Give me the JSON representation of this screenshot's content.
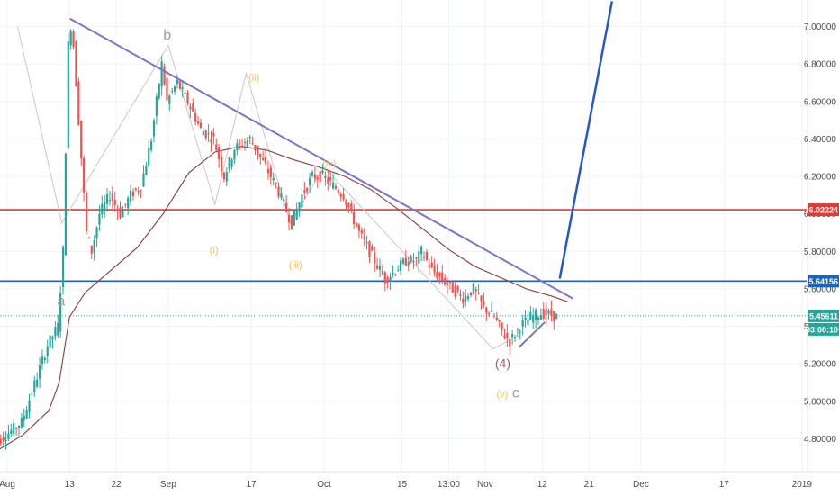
{
  "chart_data": {
    "type": "candlestick",
    "y_axis": {
      "ylim": [
        4.6,
        7.1
      ],
      "ticks": [
        "4.80000",
        "5.00000",
        "5.20000",
        "5.40000",
        "5.60000",
        "5.80000",
        "6.00000",
        "6.20000",
        "6.40000",
        "6.60000",
        "6.80000",
        "7.00000"
      ],
      "tick_values": [
        4.8,
        5.0,
        5.2,
        5.4,
        5.6,
        5.8,
        6.0,
        6.2,
        6.4,
        6.6,
        6.8,
        7.0
      ]
    },
    "x_axis": {
      "day_range": [
        -3,
        158
      ],
      "tick_labels": [
        "Aug",
        "13",
        "22",
        "Sep",
        "17",
        "Oct",
        "15",
        "13:00",
        "Nov",
        "12",
        "21",
        "Dec",
        "17",
        "2019"
      ],
      "tick_days": [
        0,
        12,
        21,
        31,
        47,
        61,
        76,
        85,
        92,
        103,
        112,
        122,
        138,
        153
      ]
    },
    "price_levels": [
      {
        "value": 6.02224,
        "label": "6.02224",
        "color": "#e53935"
      },
      {
        "value": 5.64156,
        "label": "5.64156",
        "color": "#1e63b8"
      },
      {
        "value": 5.45611,
        "label": "5.45611",
        "color": "#26a69a"
      }
    ],
    "countdown_label": "03:00:10",
    "wave_labels": [
      {
        "text": "a",
        "day": 10.4,
        "price": 5.51,
        "color": "#9e9e9e",
        "size": 16
      },
      {
        "text": "b",
        "day": 30.8,
        "price": 6.93,
        "color": "#9e9e9e",
        "size": 16
      },
      {
        "text": "(ii)",
        "day": 47.5,
        "price": 6.71,
        "color": "#f0c35a",
        "size": 11
      },
      {
        "text": "(i)",
        "day": 39.8,
        "price": 5.79,
        "color": "#f0c35a",
        "size": 11
      },
      {
        "text": "(iii)",
        "day": 55.5,
        "price": 5.71,
        "color": "#f0c35a",
        "size": 11
      },
      {
        "text": "(iv)",
        "day": 62.0,
        "price": 6.25,
        "color": "#f0c35a",
        "size": 11
      },
      {
        "text": "(4)",
        "day": 95.4,
        "price": 5.18,
        "color": "#9c5b74",
        "size": 14
      },
      {
        "text": "(v)",
        "day": 95.3,
        "price": 5.02,
        "color": "#f0c35a",
        "size": 11
      },
      {
        "text": "c",
        "day": 97.9,
        "price": 5.02,
        "color": "#9e9e9e",
        "size": 16
      }
    ],
    "trendlines": [
      {
        "points": [
          [
            12.2,
            7.04
          ],
          [
            108.8,
            5.55
          ]
        ],
        "color": "#7b74c9",
        "width": 2
      },
      {
        "points": [
          [
            98.6,
            5.29
          ],
          [
            103.4,
            5.42
          ]
        ],
        "color": "#7b74c9",
        "width": 2
      },
      {
        "points": [
          [
            106.4,
            5.66
          ],
          [
            116.4,
            7.13
          ]
        ],
        "color": "#2458c4",
        "width": 2.5
      }
    ],
    "wave_path": {
      "points": [
        [
          2.0,
          7.0
        ],
        [
          10.5,
          5.95
        ],
        [
          31.0,
          6.9
        ],
        [
          40.0,
          6.05
        ],
        [
          46.0,
          6.75
        ],
        [
          54.5,
          5.95
        ],
        [
          61.0,
          6.25
        ],
        [
          93.5,
          5.28
        ],
        [
          97.0,
          5.33
        ]
      ],
      "color": "#c8c8c8"
    },
    "moving_average": {
      "color": "#8b3a3a",
      "points": [
        [
          -3.0,
          4.72
        ],
        [
          3.0,
          4.82
        ],
        [
          8.0,
          4.95
        ],
        [
          10.0,
          5.1
        ],
        [
          12.0,
          5.45
        ],
        [
          15.0,
          5.58
        ],
        [
          20.0,
          5.7
        ],
        [
          25.0,
          5.82
        ],
        [
          30.0,
          6.0
        ],
        [
          35.0,
          6.22
        ],
        [
          40.0,
          6.33
        ],
        [
          45.0,
          6.36
        ],
        [
          50.0,
          6.34
        ],
        [
          55.0,
          6.29
        ],
        [
          60.0,
          6.25
        ],
        [
          65.0,
          6.2
        ],
        [
          70.0,
          6.13
        ],
        [
          75.0,
          6.03
        ],
        [
          80.0,
          5.92
        ],
        [
          85.0,
          5.81
        ],
        [
          90.0,
          5.72
        ],
        [
          95.0,
          5.66
        ],
        [
          100.0,
          5.6
        ],
        [
          105.0,
          5.56
        ],
        [
          108.0,
          5.53
        ]
      ]
    },
    "candle_colors": {
      "up": "#26a69a",
      "down": "#ef5350"
    },
    "price_path": [
      [
        -3.0,
        4.76
      ],
      [
        0.0,
        4.82
      ],
      [
        3.0,
        4.89
      ],
      [
        5.0,
        5.05
      ],
      [
        8.0,
        5.3
      ],
      [
        10.0,
        5.4
      ],
      [
        11.0,
        5.8
      ],
      [
        12.0,
        6.9
      ],
      [
        12.5,
        7.0
      ],
      [
        13.0,
        6.9
      ],
      [
        14.5,
        6.3
      ],
      [
        15.5,
        5.9
      ],
      [
        16.5,
        5.8
      ],
      [
        18.0,
        6.0
      ],
      [
        20.0,
        6.1
      ],
      [
        22.0,
        6.0
      ],
      [
        24.0,
        6.1
      ],
      [
        26.0,
        6.15
      ],
      [
        28.0,
        6.4
      ],
      [
        30.0,
        6.8
      ],
      [
        31.0,
        6.6
      ],
      [
        33.0,
        6.7
      ],
      [
        35.0,
        6.6
      ],
      [
        37.5,
        6.45
      ],
      [
        40.0,
        6.4
      ],
      [
        42.0,
        6.2
      ],
      [
        44.0,
        6.35
      ],
      [
        47.0,
        6.4
      ],
      [
        49.0,
        6.3
      ],
      [
        52.0,
        6.15
      ],
      [
        55.0,
        5.95
      ],
      [
        57.0,
        6.1
      ],
      [
        59.0,
        6.2
      ],
      [
        61.0,
        6.2
      ],
      [
        63.0,
        6.15
      ],
      [
        65.0,
        6.1
      ],
      [
        68.0,
        5.9
      ],
      [
        70.0,
        5.8
      ],
      [
        73.0,
        5.65
      ],
      [
        75.0,
        5.7
      ],
      [
        77.0,
        5.75
      ],
      [
        79.0,
        5.75
      ],
      [
        80.0,
        5.8
      ],
      [
        82.0,
        5.7
      ],
      [
        84.0,
        5.65
      ],
      [
        86.0,
        5.6
      ],
      [
        88.0,
        5.55
      ],
      [
        90.0,
        5.6
      ],
      [
        92.0,
        5.5
      ],
      [
        94.0,
        5.45
      ],
      [
        96.0,
        5.35
      ],
      [
        97.0,
        5.32
      ],
      [
        99.0,
        5.4
      ],
      [
        101.0,
        5.45
      ],
      [
        103.0,
        5.47
      ],
      [
        105.0,
        5.46
      ],
      [
        106.0,
        5.45
      ]
    ]
  }
}
